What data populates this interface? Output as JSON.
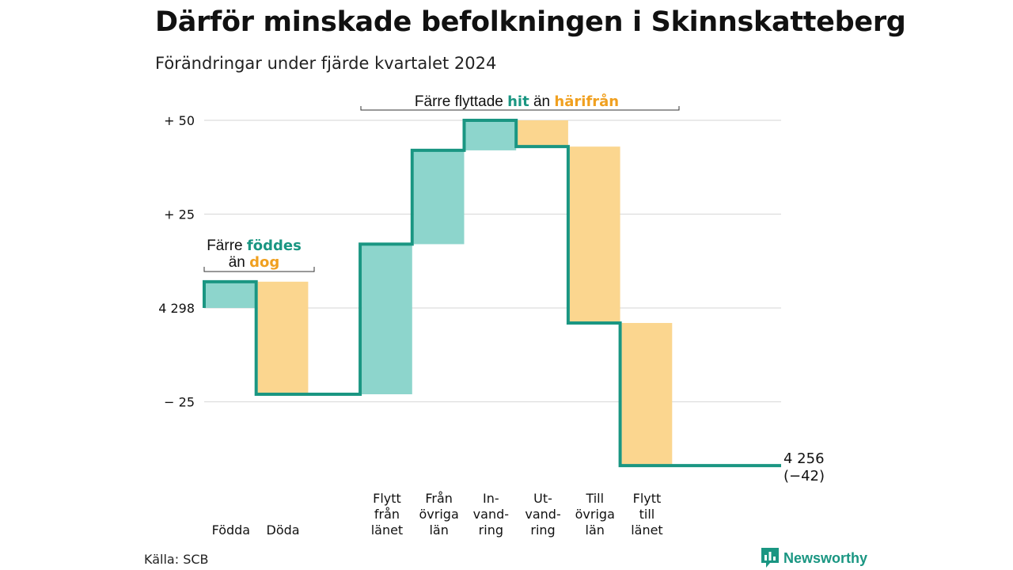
{
  "title": "Därför minskade befolkningen i Skinnskatteberg",
  "subtitle": "Förändringar under fjärde kvartalet 2024",
  "source": "Källa: SCB",
  "logo": {
    "text": "Newsworthy",
    "icon": "newsworthy-bar-chart-icon"
  },
  "colors": {
    "increase": "#8dd5cc",
    "decrease": "#fbd68f",
    "line": "#1a9682",
    "grid": "#dddddd"
  },
  "annotations": {
    "births": {
      "line1_a": "Färre ",
      "line1_b": "föddes",
      "line2_a": "än ",
      "line2_b": "dog"
    },
    "moves": {
      "a": "Färre flyttade ",
      "b": "hit",
      "c": " än ",
      "d": "härifrån"
    }
  },
  "chart_data": {
    "type": "waterfall",
    "start_value": 4298,
    "start_label": "4 298",
    "end_value": 4256,
    "end_label": "4 256",
    "end_change_label": "(−42)",
    "ylim": [
      -37,
      52
    ],
    "yticks": [
      {
        "value": 50,
        "label": "+ 50"
      },
      {
        "value": 25,
        "label": "+ 25"
      },
      {
        "value": 0,
        "label": "4 298"
      },
      {
        "value": -25,
        "label": "− 25"
      }
    ],
    "steps": [
      {
        "key": "fodda",
        "lines": [
          "Födda"
        ],
        "value": 7,
        "kind": "increase"
      },
      {
        "key": "doda",
        "lines": [
          "Döda"
        ],
        "value": -30,
        "kind": "decrease"
      },
      {
        "key": "gap",
        "lines": [],
        "value": 0,
        "kind": "none"
      },
      {
        "key": "flytt_fran_lanet",
        "lines": [
          "Flytt",
          "från",
          "länet"
        ],
        "value": 40,
        "kind": "increase"
      },
      {
        "key": "fran_ovriga_lan",
        "lines": [
          "Från",
          "övriga",
          "län"
        ],
        "value": 25,
        "kind": "increase"
      },
      {
        "key": "invandring",
        "lines": [
          "In-",
          "vand-",
          "ring"
        ],
        "value": 8,
        "kind": "increase"
      },
      {
        "key": "utvandring",
        "lines": [
          "Ut-",
          "vand-",
          "ring"
        ],
        "value": -7,
        "kind": "decrease"
      },
      {
        "key": "till_ovriga_lan",
        "lines": [
          "Till",
          "övriga",
          "län"
        ],
        "value": -47,
        "kind": "decrease"
      },
      {
        "key": "flytt_till_lanet",
        "lines": [
          "Flytt",
          "till",
          "länet"
        ],
        "value": -38,
        "kind": "decrease"
      }
    ]
  }
}
